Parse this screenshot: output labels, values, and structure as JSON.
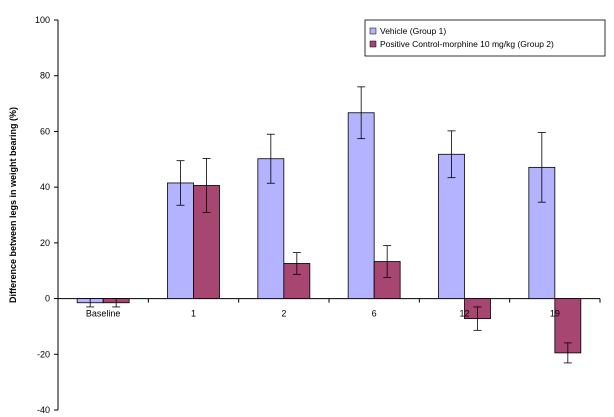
{
  "chart_data": {
    "type": "bar",
    "ylabel": "Difference between legs in weight bearing (%)",
    "xlabel": "",
    "ylim": [
      -40,
      100
    ],
    "yticks": [
      "100",
      "80",
      "60",
      "40",
      "20",
      "0",
      "-20",
      "-40"
    ],
    "categories": [
      "Baseline",
      "1",
      "2",
      "6",
      "12",
      "19"
    ],
    "grid": false,
    "legend_position": "top-right",
    "series": [
      {
        "name": "Vehicle (Group 1)",
        "color": "#b3b3ff",
        "values": [
          -1.5,
          41.5,
          50.2,
          66.7,
          51.8,
          47.1
        ],
        "errors": [
          1.5,
          8.0,
          8.8,
          9.3,
          8.4,
          12.5
        ]
      },
      {
        "name": "Positive Control-morphine 10 mg/kg (Group 2)",
        "color": "#a84672",
        "values": [
          -1.5,
          40.6,
          12.6,
          13.3,
          -7.2,
          -19.5
        ],
        "errors": [
          1.5,
          9.7,
          3.9,
          5.7,
          4.2,
          3.6
        ]
      }
    ]
  }
}
